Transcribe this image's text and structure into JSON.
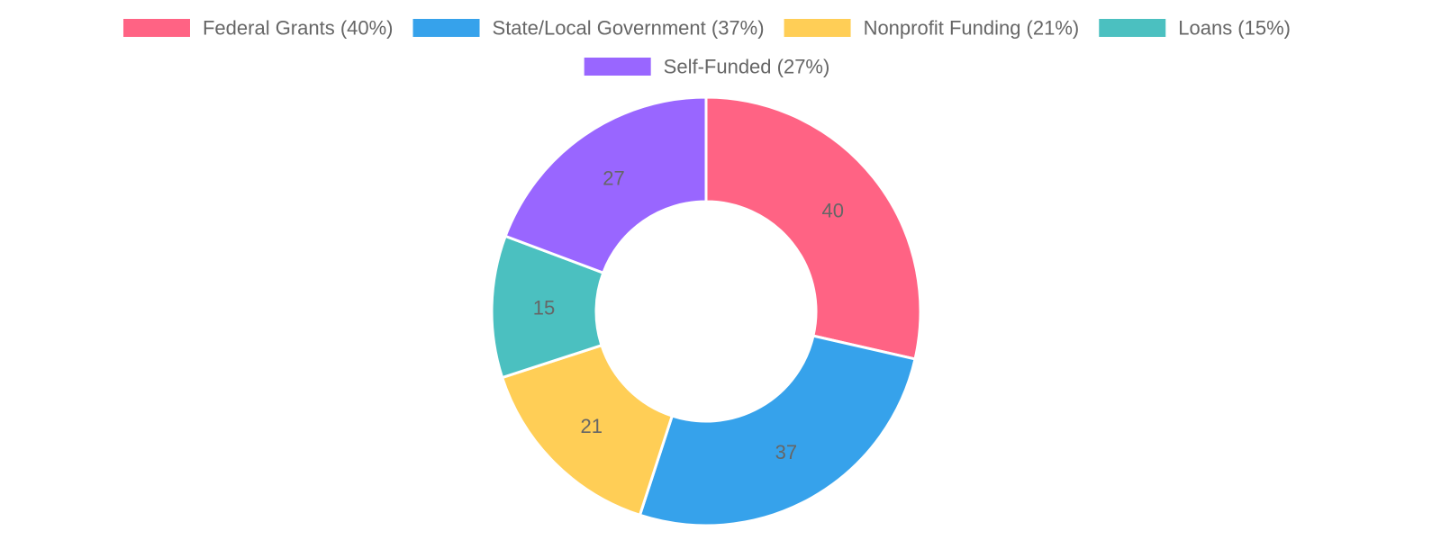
{
  "chart_data": {
    "type": "pie",
    "variant": "doughnut",
    "categories": [
      "Federal Grants (40%)",
      "State/Local Government (37%)",
      "Nonprofit Funding (21%)",
      "Loans (15%)",
      "Self-Funded (27%)"
    ],
    "values": [
      40,
      37,
      21,
      15,
      27
    ],
    "colors": [
      "#FF6384",
      "#36A2EB",
      "#FFCE56",
      "#4BC0C0",
      "#9966FF"
    ],
    "legend": "top",
    "data_labels": true
  }
}
